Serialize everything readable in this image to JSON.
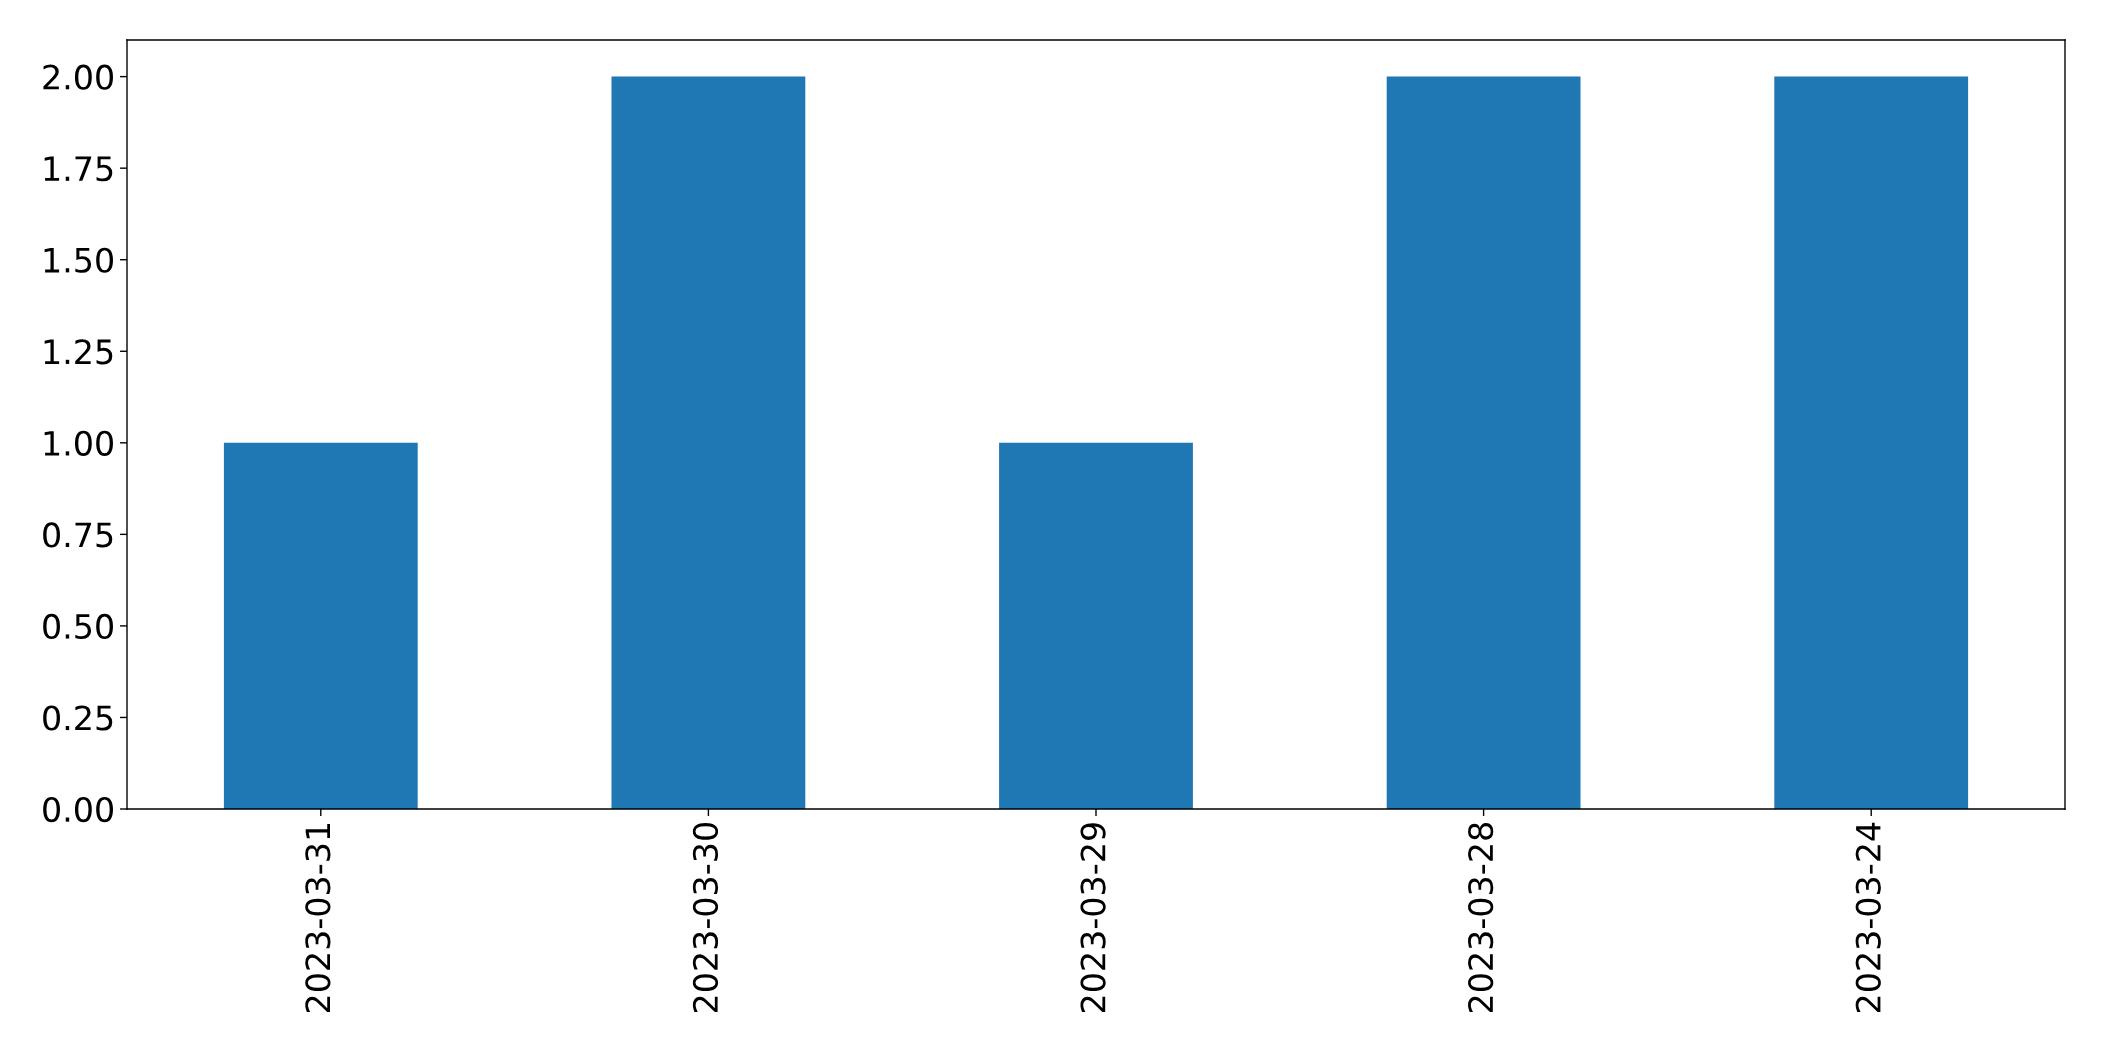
{
  "chart_data": {
    "type": "bar",
    "categories": [
      "2023-03-31",
      "2023-03-30",
      "2023-03-29",
      "2023-03-28",
      "2023-03-24"
    ],
    "values": [
      1,
      2,
      1,
      2,
      2
    ],
    "color": "#1f77b4",
    "ylim": [
      0,
      2.1
    ],
    "yticks": [
      {
        "value": 0,
        "label": "0.00"
      },
      {
        "value": 0.25,
        "label": "0.25"
      },
      {
        "value": 0.5,
        "label": "0.50"
      },
      {
        "value": 0.75,
        "label": "0.75"
      },
      {
        "value": 1,
        "label": "1.00"
      },
      {
        "value": 1.25,
        "label": "1.25"
      },
      {
        "value": 1.5,
        "label": "1.50"
      },
      {
        "value": 1.75,
        "label": "1.75"
      },
      {
        "value": 2,
        "label": "2.00"
      }
    ],
    "grid": false
  }
}
